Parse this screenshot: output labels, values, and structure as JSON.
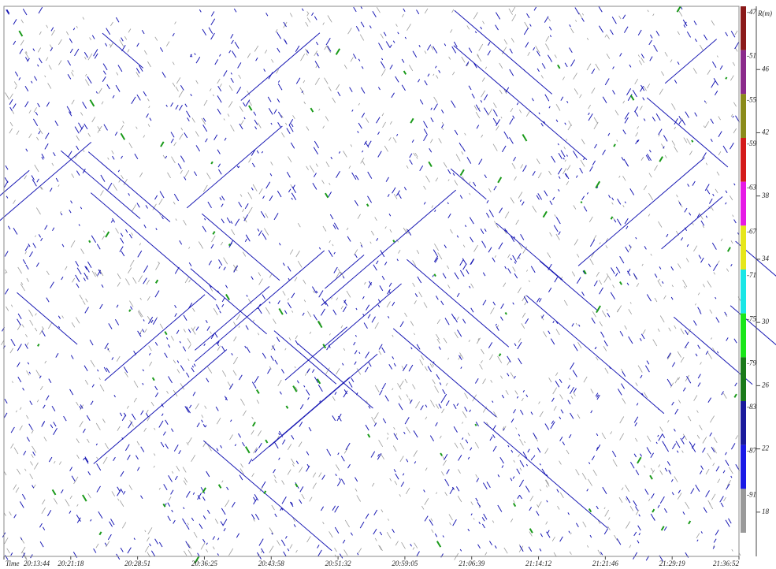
{
  "chart_data": {
    "type": "echogram",
    "x_label": "Time",
    "categories": [
      "20:13:44",
      "20:21:18",
      "20:28:51",
      "20:36:25",
      "20:43:58",
      "20:51:32",
      "20:59:05",
      "21:06:39",
      "21:14:12",
      "21:21:46",
      "21:29:19",
      "21:36:52"
    ],
    "y_label": "R(m)",
    "ylim": [
      15.2,
      50
    ],
    "yticks": [
      46,
      42,
      38,
      34,
      30,
      26,
      22,
      18
    ],
    "colorscale": {
      "ticks": [
        -47,
        -51,
        -55,
        -59,
        -63,
        -67,
        -71,
        -75,
        -79,
        -83,
        -87,
        -91
      ],
      "colors": [
        "#8b1a1a",
        "#8b2a8b",
        "#8b8b1a",
        "#d41a1a",
        "#e61ae6",
        "#e6e61a",
        "#1ae6e6",
        "#1ae61a",
        "#1a7a1a",
        "#1a1a9c",
        "#1a1ae6",
        "#9a9a9a"
      ]
    }
  }
}
